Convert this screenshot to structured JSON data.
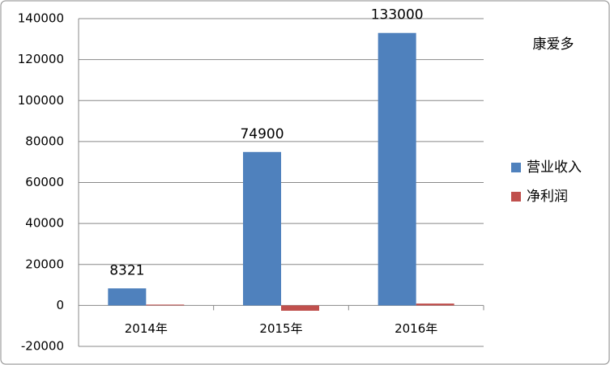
{
  "chart_data": {
    "type": "bar",
    "title": "康爱多",
    "categories": [
      "2014年",
      "2015年",
      "2016年"
    ],
    "series": [
      {
        "name": "营业收入",
        "color": "#4f81bd",
        "values": [
          8321,
          74900,
          133000
        ]
      },
      {
        "name": "净利润",
        "color": "#c0504d",
        "values": [
          400,
          -2600,
          900
        ]
      }
    ],
    "ylim": [
      -20000,
      140000
    ],
    "yticks": [
      -20000,
      0,
      20000,
      40000,
      60000,
      80000,
      100000,
      120000,
      140000
    ],
    "grid": true,
    "legend": "right"
  }
}
